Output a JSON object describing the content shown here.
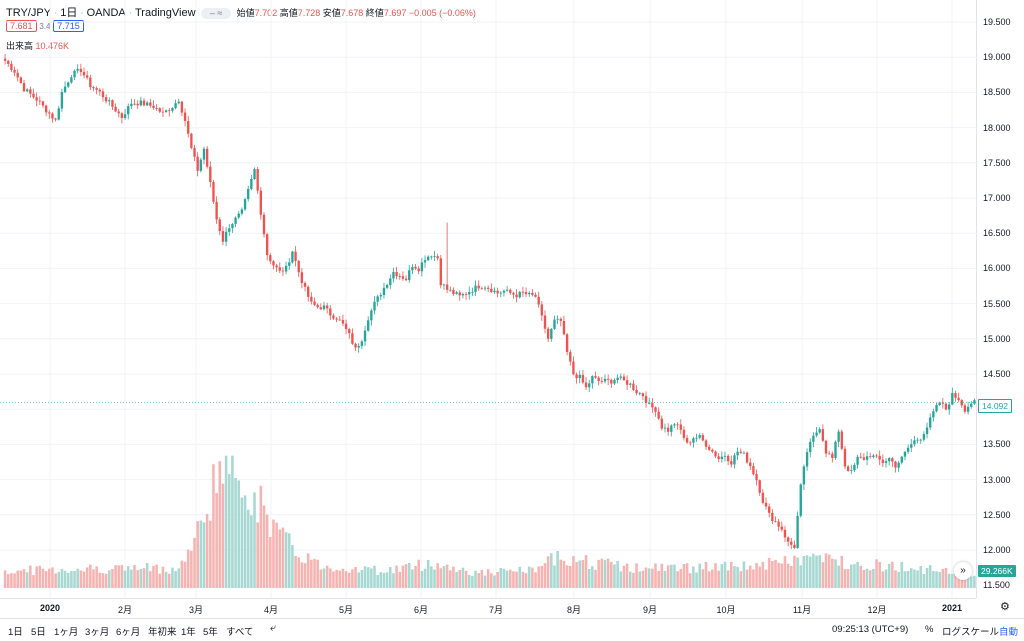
{
  "header": {
    "symbol": "TRY/JPY",
    "interval": "1日",
    "exchange": "OANDA",
    "brand": "TradingView",
    "toggle_glyph": "– ≈",
    "ohlc": [
      {
        "label": "始値",
        "value": "7.702"
      },
      {
        "label": "高値",
        "value": "7.728"
      },
      {
        "label": "安値",
        "value": "7.678"
      },
      {
        "label": "終値",
        "value": "7.697"
      }
    ],
    "change": "−0.005 (−0.06%)",
    "sell_price": "7.681",
    "spread": "3.4",
    "buy_price": "7.715",
    "volume_label": "出来高",
    "volume_value": "10.476K"
  },
  "price_axis": {
    "ticks": [
      "19.500",
      "19.000",
      "18.500",
      "18.000",
      "17.500",
      "17.000",
      "16.500",
      "16.000",
      "15.500",
      "15.000",
      "14.500",
      "14.000",
      "13.500",
      "13.000",
      "12.500",
      "12.000",
      "11.500"
    ],
    "last_price": "14.092",
    "last_volume": "29.266K"
  },
  "time_axis": {
    "ticks": [
      {
        "label": "2020",
        "major": true
      },
      {
        "label": "2月",
        "major": false
      },
      {
        "label": "3月",
        "major": false
      },
      {
        "label": "4月",
        "major": false
      },
      {
        "label": "5月",
        "major": false
      },
      {
        "label": "6月",
        "major": false
      },
      {
        "label": "7月",
        "major": false
      },
      {
        "label": "8月",
        "major": false
      },
      {
        "label": "9月",
        "major": false
      },
      {
        "label": "10月",
        "major": false
      },
      {
        "label": "11月",
        "major": false
      },
      {
        "label": "12月",
        "major": false
      },
      {
        "label": "2021",
        "major": true
      }
    ]
  },
  "bottom_bar": {
    "ranges": [
      "1日",
      "5日",
      "1ヶ月",
      "3ヶ月",
      "6ヶ月",
      "年初来",
      "1年",
      "5年",
      "すべて"
    ],
    "clock": "09:25:13 (UTC+9)",
    "percent": "%",
    "log_scale": "ログスケール",
    "auto": "自動"
  },
  "colors": {
    "up": "#26a69a",
    "down": "#ef5350",
    "up_vol": "#a8d8d2",
    "down_vol": "#f5b4b2",
    "grid": "#f0f3fa",
    "accent": "#2962ff"
  },
  "chart_data": {
    "type": "candlestick",
    "ylim": [
      11.3,
      19.7
    ],
    "grid": true,
    "anchors": [
      [
        0,
        18.95
      ],
      [
        3,
        18.8
      ],
      [
        6,
        18.55
      ],
      [
        10,
        18.4
      ],
      [
        14,
        18.2
      ],
      [
        16,
        18.1
      ],
      [
        18,
        18.5
      ],
      [
        21,
        18.75
      ],
      [
        24,
        18.82
      ],
      [
        27,
        18.6
      ],
      [
        30,
        18.5
      ],
      [
        34,
        18.3
      ],
      [
        37,
        18.15
      ],
      [
        40,
        18.35
      ],
      [
        43,
        18.35
      ],
      [
        47,
        18.3
      ],
      [
        50,
        18.2
      ],
      [
        53,
        18.3
      ],
      [
        55,
        18.4
      ],
      [
        57,
        18.1
      ],
      [
        59,
        17.7
      ],
      [
        61,
        17.4
      ],
      [
        63,
        17.7
      ],
      [
        65,
        17.2
      ],
      [
        67,
        16.7
      ],
      [
        69,
        16.4
      ],
      [
        71,
        16.6
      ],
      [
        73,
        16.7
      ],
      [
        75,
        16.8
      ],
      [
        77,
        17.1
      ],
      [
        79,
        17.4
      ],
      [
        81,
        16.8
      ],
      [
        83,
        16.2
      ],
      [
        85,
        16.05
      ],
      [
        87,
        15.95
      ],
      [
        89,
        16.0
      ],
      [
        91,
        16.25
      ],
      [
        93,
        15.95
      ],
      [
        95,
        15.7
      ],
      [
        97,
        15.5
      ],
      [
        99,
        15.45
      ],
      [
        101,
        15.45
      ],
      [
        103,
        15.35
      ],
      [
        105,
        15.3
      ],
      [
        107,
        15.2
      ],
      [
        109,
        15.05
      ],
      [
        111,
        14.85
      ],
      [
        113,
        15.0
      ],
      [
        115,
        15.3
      ],
      [
        117,
        15.5
      ],
      [
        119,
        15.65
      ],
      [
        121,
        15.8
      ],
      [
        123,
        15.95
      ],
      [
        125,
        15.9
      ],
      [
        127,
        15.85
      ],
      [
        129,
        16.05
      ],
      [
        131,
        16.0
      ],
      [
        133,
        16.15
      ],
      [
        135,
        16.2
      ],
      [
        137,
        16.15
      ],
      [
        138,
        15.8
      ],
      [
        140,
        15.7
      ],
      [
        142,
        15.65
      ],
      [
        144,
        15.6
      ],
      [
        146,
        15.65
      ],
      [
        148,
        15.7
      ],
      [
        150,
        15.75
      ],
      [
        152,
        15.75
      ],
      [
        154,
        15.7
      ],
      [
        156,
        15.65
      ],
      [
        158,
        15.68
      ],
      [
        160,
        15.65
      ],
      [
        162,
        15.62
      ],
      [
        164,
        15.65
      ],
      [
        166,
        15.62
      ],
      [
        168,
        15.6
      ],
      [
        170,
        15.3
      ],
      [
        172,
        15.0
      ],
      [
        174,
        15.25
      ],
      [
        176,
        15.25
      ],
      [
        178,
        14.8
      ],
      [
        180,
        14.5
      ],
      [
        182,
        14.45
      ],
      [
        184,
        14.3
      ],
      [
        186,
        14.45
      ],
      [
        188,
        14.4
      ],
      [
        190,
        14.4
      ],
      [
        192,
        14.4
      ],
      [
        194,
        14.45
      ],
      [
        196,
        14.4
      ],
      [
        198,
        14.35
      ],
      [
        200,
        14.25
      ],
      [
        202,
        14.2
      ],
      [
        204,
        14.05
      ],
      [
        206,
        14.0
      ],
      [
        208,
        13.75
      ],
      [
        210,
        13.7
      ],
      [
        212,
        13.8
      ],
      [
        214,
        13.7
      ],
      [
        216,
        13.5
      ],
      [
        218,
        13.6
      ],
      [
        220,
        13.6
      ],
      [
        222,
        13.5
      ],
      [
        224,
        13.4
      ],
      [
        226,
        13.3
      ],
      [
        228,
        13.35
      ],
      [
        230,
        13.25
      ],
      [
        232,
        13.4
      ],
      [
        234,
        13.35
      ],
      [
        236,
        13.2
      ],
      [
        238,
        13.0
      ],
      [
        240,
        12.7
      ],
      [
        242,
        12.5
      ],
      [
        244,
        12.4
      ],
      [
        246,
        12.3
      ],
      [
        248,
        12.1
      ],
      [
        250,
        12.05
      ],
      [
        252,
        12.9
      ],
      [
        254,
        13.4
      ],
      [
        256,
        13.6
      ],
      [
        258,
        13.75
      ],
      [
        260,
        13.4
      ],
      [
        262,
        13.3
      ],
      [
        264,
        13.7
      ],
      [
        266,
        13.2
      ],
      [
        268,
        13.1
      ],
      [
        270,
        13.3
      ],
      [
        272,
        13.3
      ],
      [
        274,
        13.35
      ],
      [
        276,
        13.3
      ],
      [
        278,
        13.25
      ],
      [
        280,
        13.3
      ],
      [
        282,
        13.2
      ],
      [
        284,
        13.3
      ],
      [
        286,
        13.45
      ],
      [
        288,
        13.55
      ],
      [
        290,
        13.6
      ],
      [
        292,
        13.75
      ],
      [
        294,
        13.95
      ],
      [
        296,
        14.1
      ],
      [
        298,
        14.0
      ],
      [
        300,
        14.2
      ],
      [
        302,
        14.15
      ],
      [
        304,
        14.0
      ],
      [
        306,
        14.09
      ]
    ],
    "volume_profile": [
      [
        0,
        0.14
      ],
      [
        30,
        0.16
      ],
      [
        55,
        0.16
      ],
      [
        58,
        0.28
      ],
      [
        62,
        0.5
      ],
      [
        66,
        0.85
      ],
      [
        68,
        1.0
      ],
      [
        71,
        0.88
      ],
      [
        74,
        0.95
      ],
      [
        77,
        0.82
      ],
      [
        80,
        0.7
      ],
      [
        84,
        0.55
      ],
      [
        88,
        0.4
      ],
      [
        92,
        0.3
      ],
      [
        100,
        0.18
      ],
      [
        120,
        0.14
      ],
      [
        135,
        0.2
      ],
      [
        150,
        0.12
      ],
      [
        170,
        0.15
      ],
      [
        175,
        0.28
      ],
      [
        182,
        0.22
      ],
      [
        200,
        0.16
      ],
      [
        230,
        0.17
      ],
      [
        245,
        0.2
      ],
      [
        255,
        0.25
      ],
      [
        270,
        0.2
      ],
      [
        290,
        0.16
      ],
      [
        300,
        0.12
      ],
      [
        307,
        0.1
      ]
    ],
    "spike": {
      "index": 140,
      "high": 16.65
    }
  }
}
